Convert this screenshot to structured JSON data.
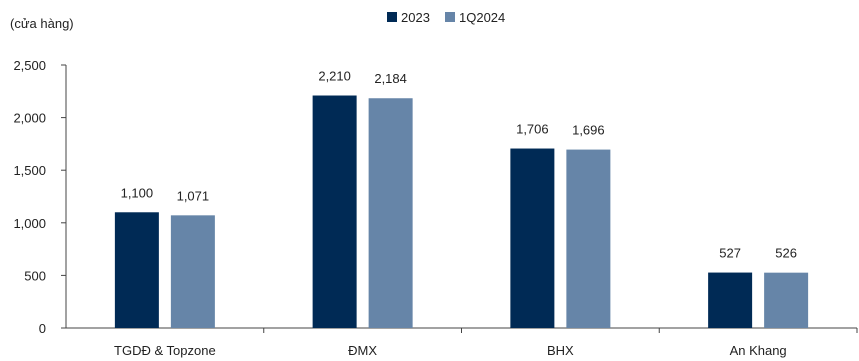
{
  "chart_data": {
    "type": "bar",
    "ylabel": "(cửa hàng)",
    "categories": [
      "TGDĐ & Topzone",
      "ĐMX",
      "BHX",
      "An Khang"
    ],
    "series": [
      {
        "name": "2023",
        "values": [
          1100,
          2210,
          1706,
          527
        ],
        "color": "#002a55"
      },
      {
        "name": "1Q2024",
        "values": [
          1071,
          2184,
          1696,
          526
        ],
        "color": "#6685a8"
      }
    ],
    "data_labels": [
      [
        "1,100",
        "2,210",
        "1,706",
        "527"
      ],
      [
        "1,071",
        "2,184",
        "1,696",
        "526"
      ]
    ],
    "y_ticks": [
      0,
      500,
      1000,
      1500,
      2000,
      2500
    ],
    "y_tick_labels": [
      "0",
      "500",
      "1,000",
      "1,500",
      "2,000",
      "2,500"
    ],
    "ylim": [
      0,
      2500
    ],
    "grid": false,
    "legend_position": "top-center"
  }
}
